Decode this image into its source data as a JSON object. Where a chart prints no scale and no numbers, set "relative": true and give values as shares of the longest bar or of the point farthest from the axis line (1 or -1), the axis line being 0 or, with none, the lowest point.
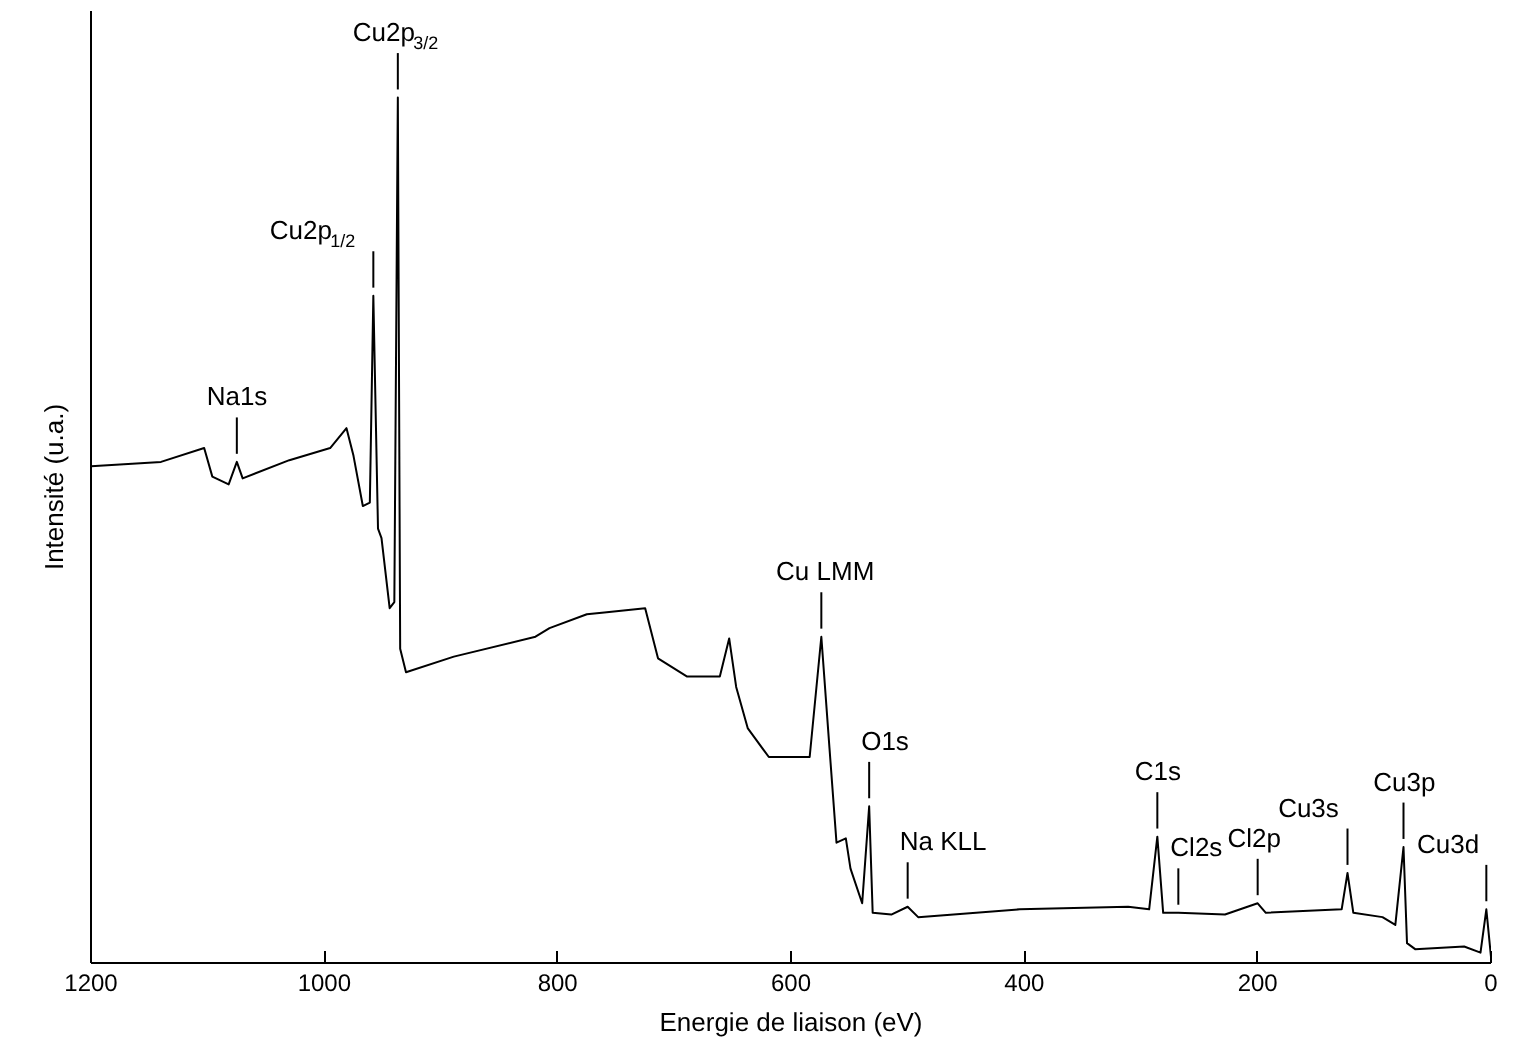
{
  "chart_data": {
    "type": "line",
    "relative": true,
    "xlabel": "Energie de liaison (eV)",
    "ylabel": "Intensité (u.a.)",
    "xlim": [
      1200,
      0
    ],
    "xticks": [
      1200,
      1000,
      800,
      600,
      400,
      200,
      0
    ],
    "grid": false,
    "series": [
      {
        "color": "#000000",
        "x": [
          1200,
          1140,
          1103,
          1096,
          1082,
          1075,
          1070,
          1030,
          995,
          981,
          975,
          967,
          961,
          958,
          954,
          951,
          944,
          940,
          937,
          935,
          930,
          889,
          819,
          807,
          775,
          760,
          725,
          714,
          689,
          661,
          653,
          647,
          637,
          619,
          584,
          574,
          567,
          561,
          553,
          549,
          539,
          533,
          530,
          514,
          500,
          491,
          404,
          311,
          293,
          286,
          281,
          268,
          228,
          200,
          193,
          128,
          123,
          118,
          93,
          82,
          75,
          72,
          65,
          23,
          9,
          4,
          0
        ],
        "values": [
          0.574,
          0.579,
          0.595,
          0.562,
          0.553,
          0.579,
          0.56,
          0.581,
          0.595,
          0.618,
          0.586,
          0.528,
          0.532,
          0.771,
          0.502,
          0.491,
          0.41,
          0.417,
          1.0,
          0.363,
          0.336,
          0.354,
          0.377,
          0.387,
          0.403,
          0.405,
          0.41,
          0.352,
          0.331,
          0.331,
          0.375,
          0.319,
          0.271,
          0.238,
          0.238,
          0.377,
          0.248,
          0.139,
          0.144,
          0.109,
          0.069,
          0.181,
          0.058,
          0.056,
          0.065,
          0.053,
          0.062,
          0.065,
          0.062,
          0.146,
          0.058,
          0.058,
          0.056,
          0.069,
          0.058,
          0.062,
          0.104,
          0.058,
          0.053,
          0.044,
          0.134,
          0.023,
          0.016,
          0.019,
          0.012,
          0.062,
          0.007
        ]
      }
    ],
    "annotations": [
      {
        "text": "Na1s",
        "x": 1075,
        "y": 0.579
      },
      {
        "text": "Cu2p$_{1/2}$",
        "x": 958,
        "y": 0.771
      },
      {
        "text": "Cu2p$_{3/2}$",
        "x": 937,
        "y": 1.0
      },
      {
        "text": "Cu LMM",
        "x": 574,
        "y": 0.377
      },
      {
        "text": "O1s",
        "x": 533,
        "y": 0.181
      },
      {
        "text": "Na KLL",
        "x": 500,
        "y": 0.065
      },
      {
        "text": "C1s",
        "x": 286,
        "y": 0.146
      },
      {
        "text": "Cl2s",
        "x": 268,
        "y": 0.058
      },
      {
        "text": "Cl2p",
        "x": 200,
        "y": 0.069
      },
      {
        "text": "Cu3s",
        "x": 123,
        "y": 0.104
      },
      {
        "text": "Cu3p",
        "x": 75,
        "y": 0.134
      },
      {
        "text": "Cu3d",
        "x": 4,
        "y": 0.062
      }
    ]
  }
}
